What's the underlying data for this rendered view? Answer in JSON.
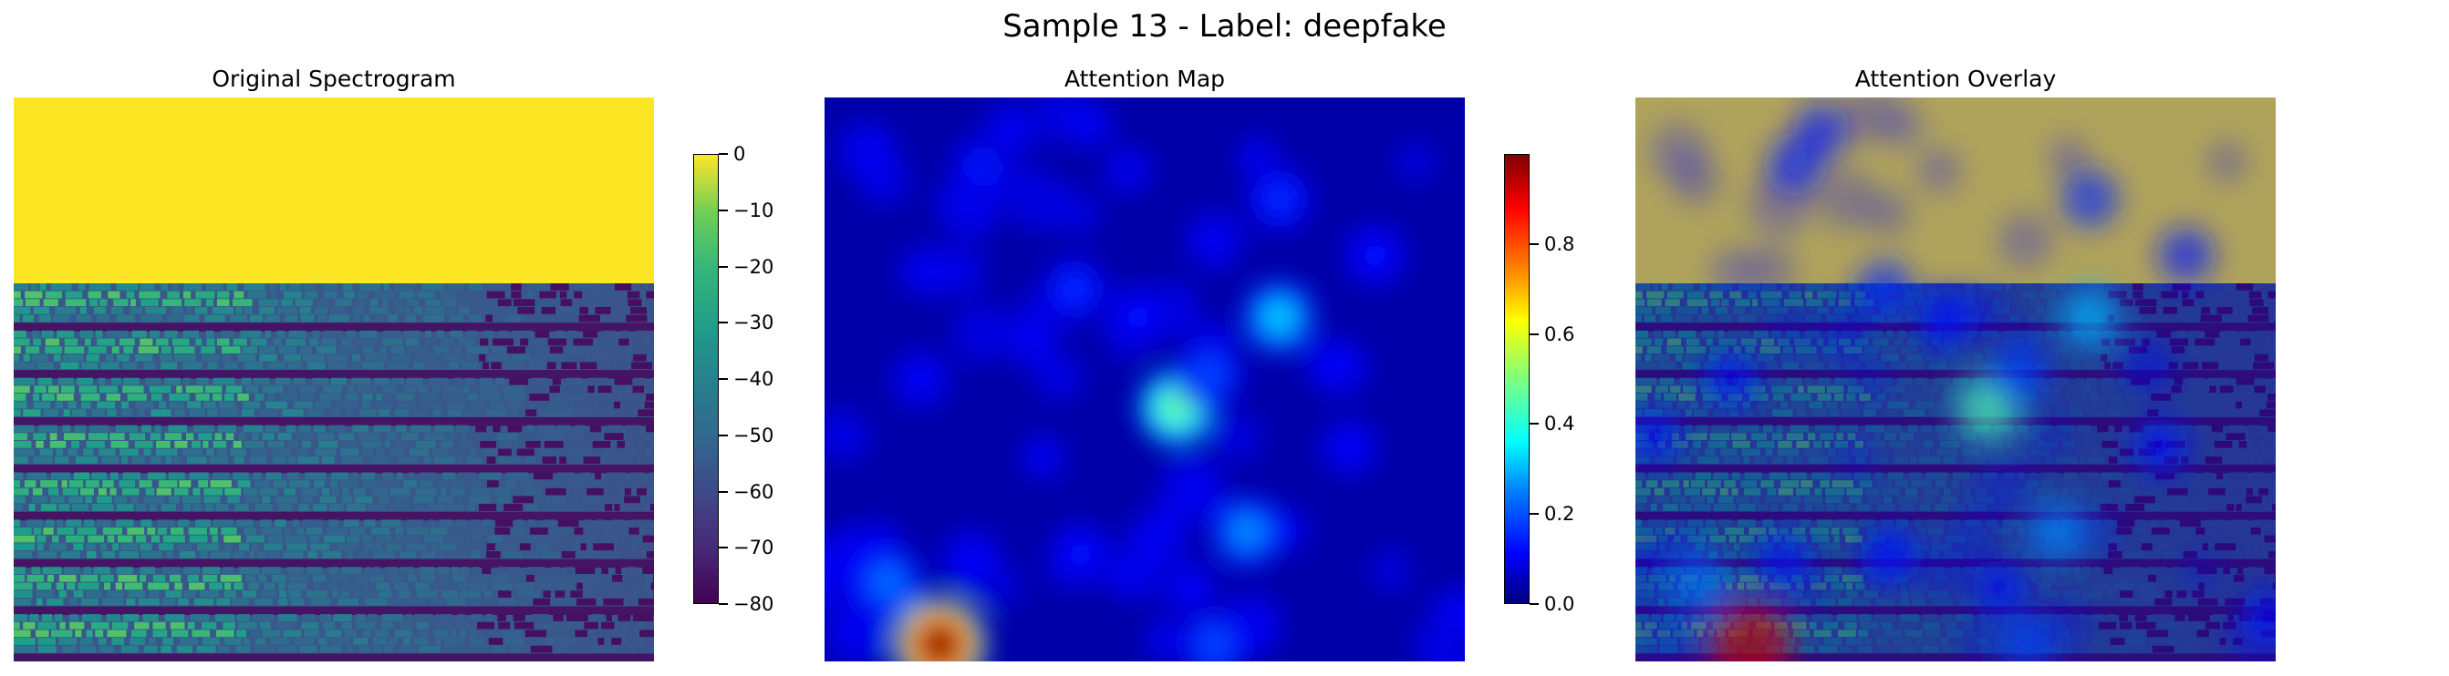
{
  "figure": {
    "suptitle": "Sample 13 - Label: deepfake"
  },
  "chart_data": [
    {
      "type": "heatmap",
      "title": "Original Spectrogram",
      "colormap": "viridis",
      "axes_visible": false,
      "colorbar": {
        "vmin": -80,
        "vmax": 0,
        "ticks": [
          0,
          -10,
          -20,
          -30,
          -40,
          -50,
          -60,
          -70,
          -80
        ],
        "tick_labels": [
          "0",
          "−10",
          "−20",
          "−30",
          "−40",
          "−50",
          "−60",
          "−70",
          "−80"
        ]
      },
      "description_values": {
        "top_region_value_db": 0,
        "background_value_db": -55,
        "silent_band_value_db": -75,
        "peak_value_db": -15
      }
    },
    {
      "type": "heatmap",
      "title": "Attention Map",
      "colormap": "jet",
      "axes_visible": false,
      "colorbar": {
        "vmin": 0.0,
        "vmax": 1.0,
        "ticks": [
          0.0,
          0.2,
          0.4,
          0.6,
          0.8
        ],
        "tick_labels": [
          "0.0",
          "0.2",
          "0.4",
          "0.6",
          "0.8"
        ]
      },
      "hotspots": [
        {
          "x": 0.18,
          "y": 0.97,
          "value": 1.0
        },
        {
          "x": 0.55,
          "y": 0.55,
          "value": 0.48
        },
        {
          "x": 0.71,
          "y": 0.39,
          "value": 0.33
        },
        {
          "x": 0.66,
          "y": 0.77,
          "value": 0.27
        },
        {
          "x": 0.1,
          "y": 0.86,
          "value": 0.24
        },
        {
          "x": 0.6,
          "y": 0.49,
          "value": 0.2
        },
        {
          "x": 0.61,
          "y": 0.97,
          "value": 0.2
        },
        {
          "x": 0.71,
          "y": 0.18,
          "value": 0.17
        },
        {
          "x": 0.39,
          "y": 0.34,
          "value": 0.17
        },
        {
          "x": 0.25,
          "y": 0.12,
          "value": 0.15
        },
        {
          "x": 0.4,
          "y": 0.81,
          "value": 0.14
        },
        {
          "x": 0.49,
          "y": 0.39,
          "value": 0.14
        },
        {
          "x": 0.86,
          "y": 0.28,
          "value": 0.14
        },
        {
          "x": 0.23,
          "y": 0.82,
          "value": 0.13
        },
        {
          "x": 0.15,
          "y": 0.5,
          "value": 0.12
        },
        {
          "x": 0.82,
          "y": 0.62,
          "value": 0.12
        },
        {
          "x": 0.99,
          "y": 0.92,
          "value": 0.12
        },
        {
          "x": 0.29,
          "y": 0.06,
          "value": 0.11
        },
        {
          "x": 0.57,
          "y": 0.87,
          "value": 0.11
        },
        {
          "x": 0.03,
          "y": 0.6,
          "value": 0.1
        }
      ]
    },
    {
      "type": "heatmap",
      "title": "Attention Overlay",
      "composition": "spectrogram (viridis) blended with attention map (jet)",
      "axes_visible": false
    }
  ],
  "colors": {
    "spectrogram_top": "#fde725",
    "spectrogram_bg": "#21918c",
    "attention_bg": "#0000a8"
  }
}
